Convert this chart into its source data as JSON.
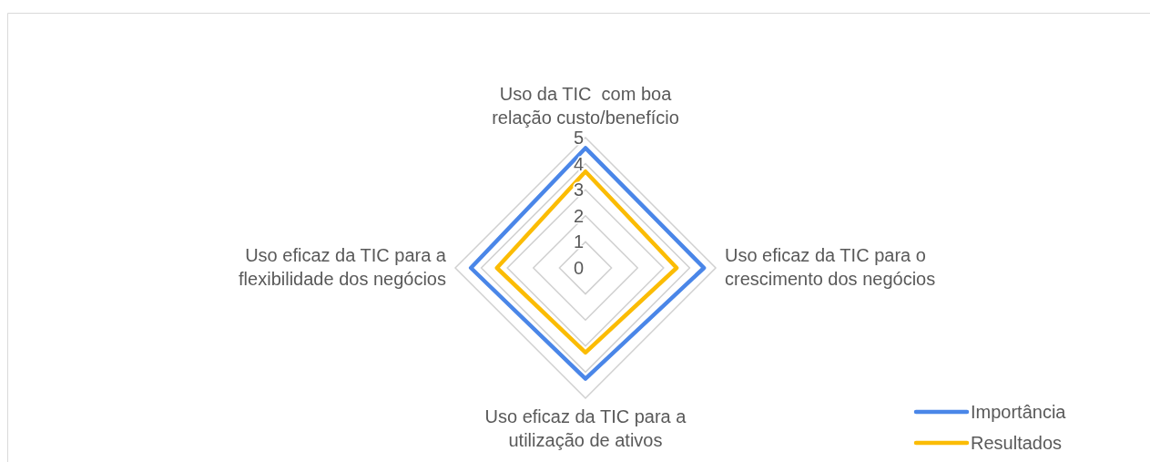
{
  "chart_data": {
    "type": "radar",
    "categories": [
      "Uso da TIC  com boa relação custo/benefício",
      "Uso eficaz da TIC para o crescimento dos negócios",
      "Uso eficaz da TIC para a utilização de ativos",
      "Uso eficaz da TIC para a flexibilidade dos negócios"
    ],
    "series": [
      {
        "name": "Importância",
        "color": "#4a86e8",
        "values": [
          4.6,
          4.55,
          4.25,
          4.4
        ]
      },
      {
        "name": "Resultados",
        "color": "#fbbc04",
        "values": [
          3.7,
          3.5,
          3.25,
          3.4
        ]
      }
    ],
    "ylim": [
      0,
      5
    ],
    "yticks": [
      0,
      1,
      2,
      3,
      4,
      5
    ],
    "grid": true,
    "legend": "bottom right"
  }
}
